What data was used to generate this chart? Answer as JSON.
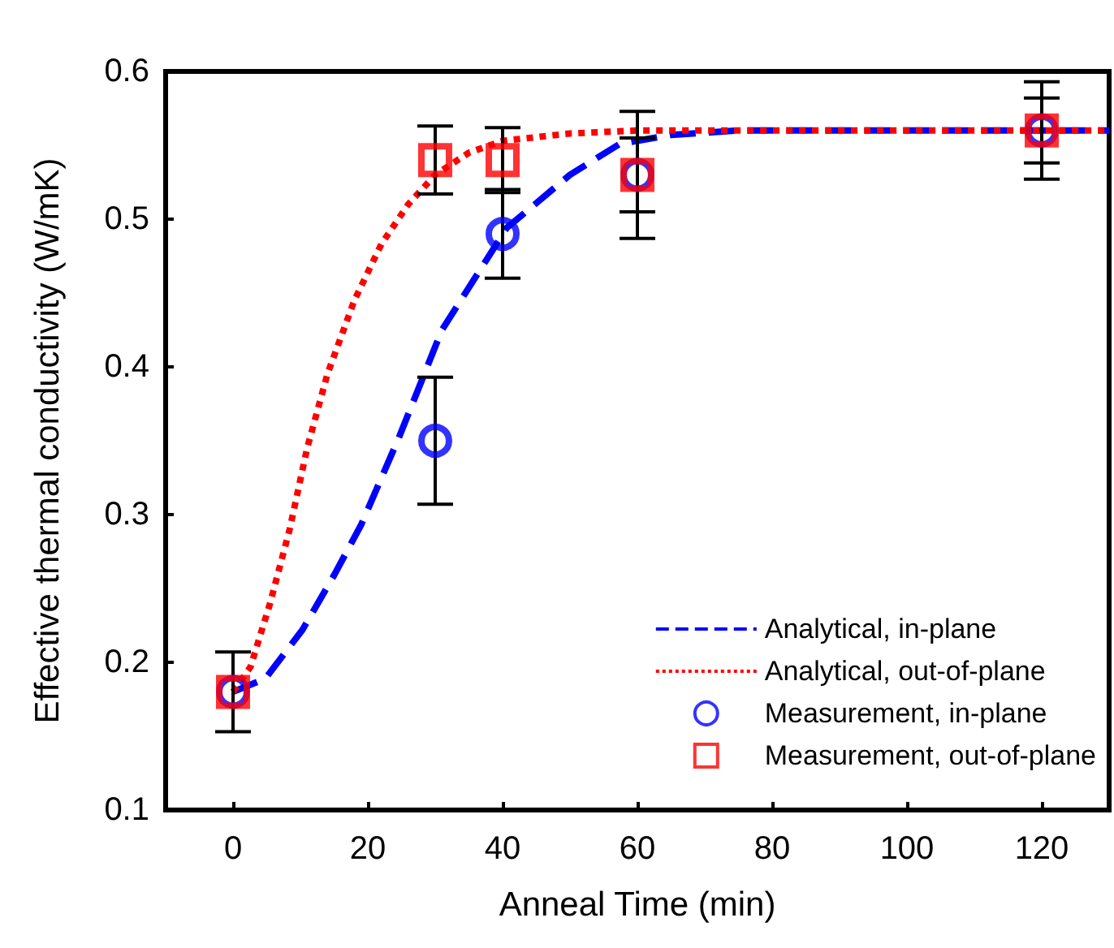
{
  "chart_data": {
    "type": "line",
    "xlabel": "Anneal Time (min)",
    "ylabel": "Effective thermal conductivity (W/mK)",
    "xlim": [
      -10,
      130
    ],
    "xticks": [
      0,
      20,
      40,
      60,
      80,
      100,
      120
    ],
    "ylim": [
      0.1,
      0.6
    ],
    "yticks": [
      0.1,
      0.2,
      0.3,
      0.4,
      0.5,
      0.6
    ],
    "grid": false,
    "legend": "bottom right",
    "series": [
      {
        "name": "Analytical, in-plane",
        "color": "#0000ff",
        "line_style": "dashed",
        "marker": "none",
        "x": [
          0,
          4.8,
          10.3,
          15,
          19,
          24.6,
          31,
          40.6,
          50,
          57.4,
          65,
          75,
          130
        ],
        "values": [
          0.18,
          0.189,
          0.222,
          0.259,
          0.293,
          0.352,
          0.425,
          0.494,
          0.53,
          0.551,
          0.557,
          0.56,
          0.56
        ]
      },
      {
        "name": "Analytical, out-of-plane",
        "color": "#ff0000",
        "line_style": "dotted",
        "marker": "none",
        "x": [
          0,
          2.6,
          5.5,
          8.4,
          11,
          14,
          18,
          22,
          26,
          30,
          35,
          40,
          50,
          60,
          70,
          130
        ],
        "values": [
          0.18,
          0.197,
          0.24,
          0.29,
          0.345,
          0.395,
          0.445,
          0.483,
          0.51,
          0.53,
          0.545,
          0.553,
          0.558,
          0.56,
          0.56,
          0.56
        ]
      },
      {
        "name": "Measurement, in-plane",
        "type": "scatter",
        "color": "#0000ff",
        "marker": "circle",
        "x": [
          0,
          30,
          40,
          60,
          120
        ],
        "values": [
          0.18,
          0.35,
          0.49,
          0.53,
          0.56
        ],
        "errors": [
          0.027,
          0.043,
          0.03,
          0.043,
          0.033
        ]
      },
      {
        "name": "Measurement, out-of-plane",
        "type": "scatter",
        "color": "#ff0000",
        "marker": "square",
        "x": [
          0,
          30,
          40,
          60,
          120
        ],
        "values": [
          0.18,
          0.54,
          0.54,
          0.53,
          0.56
        ],
        "errors": [
          null,
          0.023,
          0.022,
          0.025,
          0.022
        ]
      }
    ]
  }
}
